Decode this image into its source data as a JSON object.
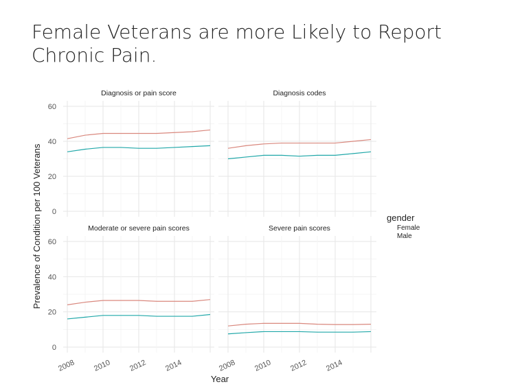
{
  "slide_title": "Female Veterans are more Likely to Report Chronic Pain.",
  "chart_data": {
    "type": "line",
    "xlabel": "Year",
    "ylabel": "Prevalence of Condition per 100 Veterans",
    "x": [
      2008,
      2009,
      2010,
      2011,
      2012,
      2013,
      2014,
      2015,
      2016
    ],
    "x_ticks": [
      "2008",
      "2010",
      "2012",
      "2014"
    ],
    "y_ticks": [
      "0",
      "20",
      "40",
      "60"
    ],
    "ylim": [
      0,
      60
    ],
    "grid": true,
    "legend": {
      "title": "gender",
      "entries": [
        "Female",
        "Male"
      ],
      "placement": "right"
    },
    "colors": {
      "Female": "#d9877d",
      "Male": "#1fa7a8"
    },
    "panels": [
      {
        "title": "Diagnosis or pain score",
        "series": [
          {
            "name": "Female",
            "values": [
              41.5,
              43.5,
              44.5,
              44.5,
              44.5,
              44.5,
              45,
              45.5,
              46.5
            ]
          },
          {
            "name": "Male",
            "values": [
              34,
              35.5,
              36.5,
              36.5,
              36,
              36,
              36.5,
              37,
              37.5
            ]
          }
        ]
      },
      {
        "title": "Diagnosis codes",
        "series": [
          {
            "name": "Female",
            "values": [
              36,
              37.5,
              38.5,
              39,
              39,
              39,
              39,
              40,
              41
            ]
          },
          {
            "name": "Male",
            "values": [
              30,
              31,
              32,
              32,
              31.5,
              32,
              32,
              33,
              34
            ]
          }
        ]
      },
      {
        "title": "Moderate or severe pain scores",
        "series": [
          {
            "name": "Female",
            "values": [
              24,
              25.5,
              26.5,
              26.5,
              26.5,
              26,
              26,
              26,
              27
            ]
          },
          {
            "name": "Male",
            "values": [
              16,
              17,
              18,
              18,
              18,
              17.5,
              17.5,
              17.5,
              18.5
            ]
          }
        ]
      },
      {
        "title": "Severe pain scores",
        "series": [
          {
            "name": "Female",
            "values": [
              12,
              13,
              13.5,
              13.5,
              13.5,
              13,
              12.8,
              12.8,
              13
            ]
          },
          {
            "name": "Male",
            "values": [
              7.5,
              8.2,
              8.8,
              8.8,
              8.8,
              8.5,
              8.5,
              8.5,
              8.8
            ]
          }
        ]
      }
    ]
  }
}
